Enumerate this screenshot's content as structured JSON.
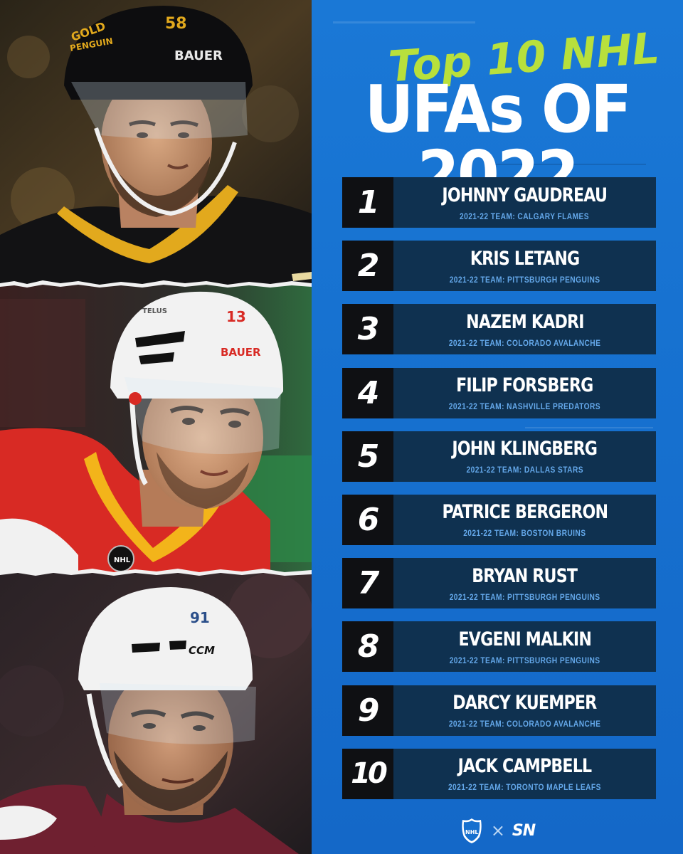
{
  "header": {
    "script_title": "Top 10 NHL",
    "title": "UFAs OF 2022"
  },
  "photos": [
    {
      "helmet_brand": "BAUER",
      "helmet_number": "58",
      "helmet_sticker": "PENGUIN",
      "helmet_sticker2": "GOLD"
    },
    {
      "helmet_brand": "BAUER",
      "helmet_number": "13",
      "helmet_sticker": "TELUS",
      "jersey_logo": "NHL"
    },
    {
      "helmet_brand": "CCM",
      "helmet_number": "91"
    }
  ],
  "rankings": [
    {
      "rank": "1",
      "name": "JOHNNY GAUDREAU",
      "team": "2021-22 TEAM: CALGARY FLAMES"
    },
    {
      "rank": "2",
      "name": "KRIS LETANG",
      "team": "2021-22 TEAM: PITTSBURGH PENGUINS"
    },
    {
      "rank": "3",
      "name": "NAZEM KADRI",
      "team": "2021-22 TEAM: COLORADO AVALANCHE"
    },
    {
      "rank": "4",
      "name": "FILIP FORSBERG",
      "team": "2021-22 TEAM: NASHVILLE PREDATORS"
    },
    {
      "rank": "5",
      "name": "JOHN KLINGBERG",
      "team": "2021-22 TEAM: DALLAS STARS"
    },
    {
      "rank": "6",
      "name": "PATRICE BERGERON",
      "team": "2021-22 TEAM: BOSTON BRUINS"
    },
    {
      "rank": "7",
      "name": "BRYAN RUST",
      "team": "2021-22 TEAM: PITTSBURGH PENGUINS"
    },
    {
      "rank": "8",
      "name": "EVGENI MALKIN",
      "team": "2021-22 TEAM: PITTSBURGH PENGUINS"
    },
    {
      "rank": "9",
      "name": "DARCY KUEMPER",
      "team": "2021-22 TEAM: COLORADO AVALANCHE"
    },
    {
      "rank": "10",
      "name": "JACK CAMPBELL",
      "team": "2021-22 TEAM: TORONTO MAPLE LEAFS"
    }
  ],
  "footer": {
    "nhl_logo_text": "NHL",
    "separator": "×",
    "sn_logo_text": "SN"
  },
  "colors": {
    "panel_blue": "#1670cf",
    "rank_box": "#0f1013",
    "info_box": "#0f3150",
    "accent_green": "#b8e03c",
    "team_text": "#64a8ea"
  }
}
